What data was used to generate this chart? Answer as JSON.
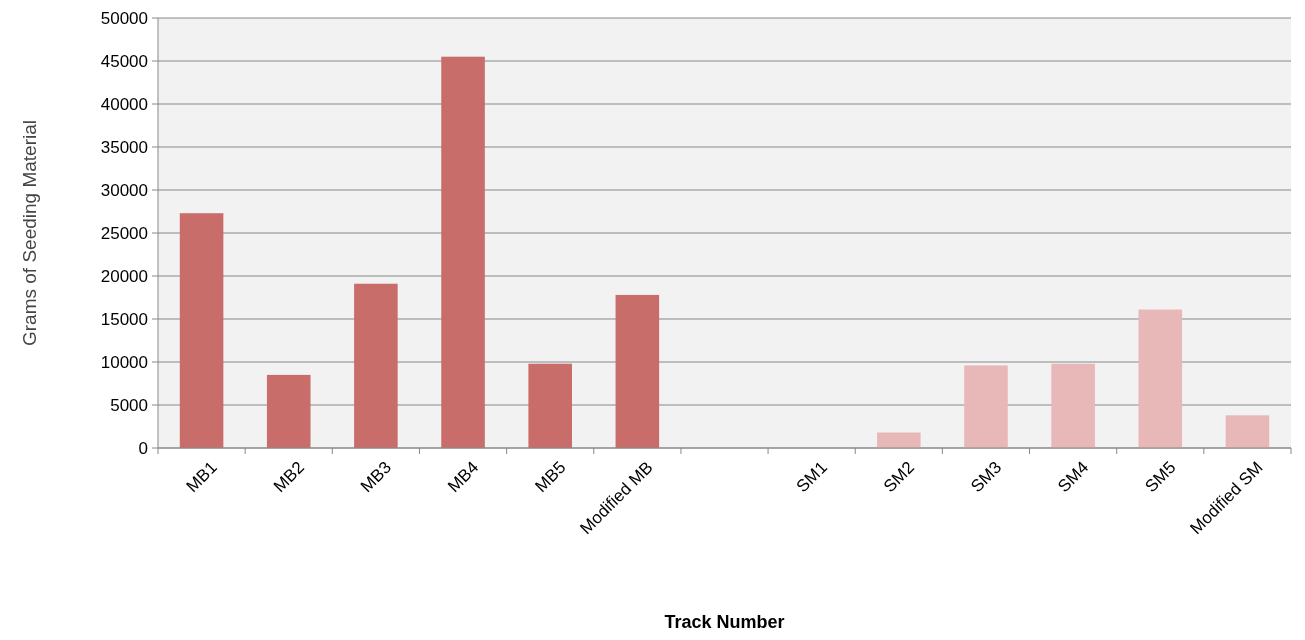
{
  "chart_data": {
    "type": "bar",
    "xlabel": "Track Number",
    "ylabel": "Grams of Seeding Material",
    "categories": [
      "MB1",
      "MB2",
      "MB3",
      "MB4",
      "MB5",
      "Modified MB",
      null,
      "SM1",
      "SM2",
      "SM3",
      "SM4",
      "SM5",
      "Modified SM"
    ],
    "values": [
      27300,
      8500,
      19100,
      45500,
      9800,
      17800,
      null,
      0,
      1800,
      9600,
      9800,
      16100,
      3800
    ],
    "colors": [
      "#c96d6b",
      "#c96d6b",
      "#c96d6b",
      "#c96d6b",
      "#c96d6b",
      "#c96d6b",
      null,
      "#e8b8b8",
      "#e8b8b8",
      "#e8b8b8",
      "#e8b8b8",
      "#e8b8b8",
      "#e8b8b8"
    ],
    "ylim": [
      0,
      50000
    ],
    "yticks": [
      0,
      5000,
      10000,
      15000,
      20000,
      25000,
      30000,
      35000,
      40000,
      45000,
      50000
    ],
    "grid": "y"
  }
}
